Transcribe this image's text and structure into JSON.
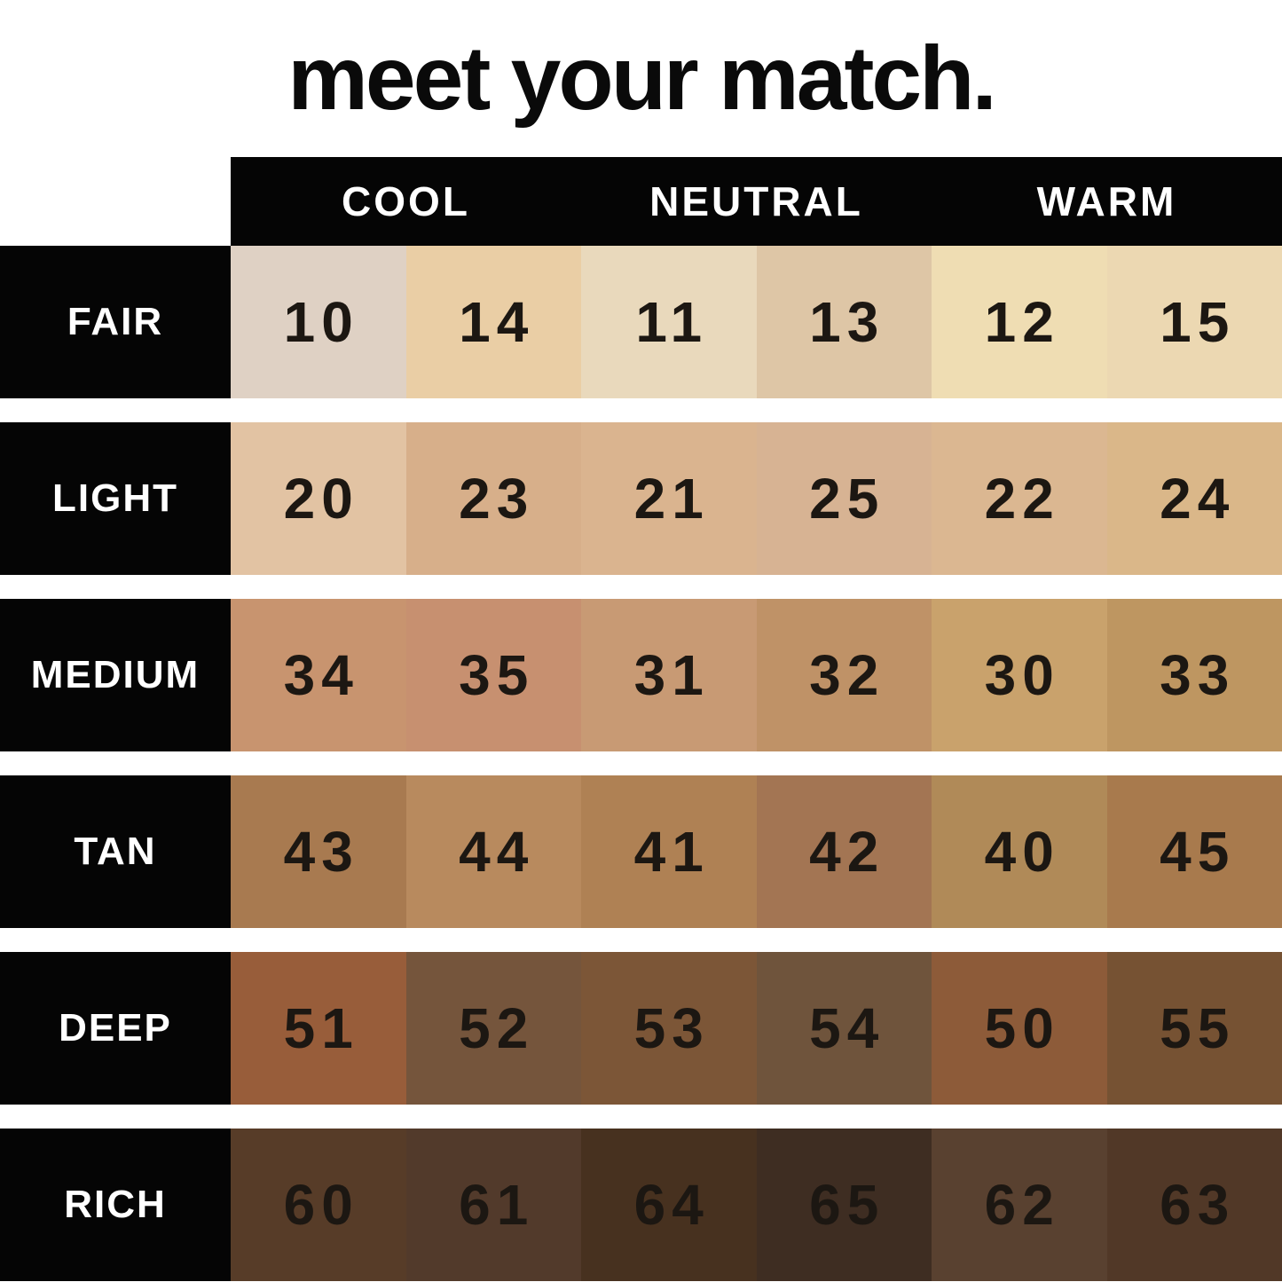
{
  "title": "meet your match.",
  "header": {
    "columns": [
      "COOL",
      "NEUTRAL",
      "WARM"
    ]
  },
  "colors": {
    "background": "#ffffff",
    "bar": "#050505",
    "header_text": "#ffffff",
    "label_text": "#ffffff",
    "number_text": "#1c1712"
  },
  "chart_data": {
    "type": "table",
    "title": "meet your match.",
    "column_groups": [
      "COOL",
      "NEUTRAL",
      "WARM"
    ],
    "columns_per_group": 2,
    "rows": [
      {
        "label": "FAIR",
        "shades": [
          {
            "number": "10",
            "color": "#DFD1C4"
          },
          {
            "number": "14",
            "color": "#EACEA5"
          },
          {
            "number": "11",
            "color": "#E9D9BC"
          },
          {
            "number": "13",
            "color": "#DEC6A6"
          },
          {
            "number": "12",
            "color": "#EFDDB3"
          },
          {
            "number": "15",
            "color": "#ECD8B2"
          }
        ]
      },
      {
        "label": "LIGHT",
        "shades": [
          {
            "number": "20",
            "color": "#E2C3A3"
          },
          {
            "number": "23",
            "color": "#D7AF8A"
          },
          {
            "number": "21",
            "color": "#DAB48F"
          },
          {
            "number": "25",
            "color": "#D7B393"
          },
          {
            "number": "22",
            "color": "#DBB791"
          },
          {
            "number": "24",
            "color": "#DAB789"
          }
        ]
      },
      {
        "label": "MEDIUM",
        "shades": [
          {
            "number": "34",
            "color": "#C8946F"
          },
          {
            "number": "35",
            "color": "#C79070"
          },
          {
            "number": "31",
            "color": "#C89A74"
          },
          {
            "number": "32",
            "color": "#BF9267"
          },
          {
            "number": "30",
            "color": "#C9A26C"
          },
          {
            "number": "33",
            "color": "#BE9661"
          }
        ]
      },
      {
        "label": "TAN",
        "shades": [
          {
            "number": "43",
            "color": "#A87A50"
          },
          {
            "number": "44",
            "color": "#B88A5E"
          },
          {
            "number": "41",
            "color": "#AF8154"
          },
          {
            "number": "42",
            "color": "#A37553"
          },
          {
            "number": "40",
            "color": "#B08A58"
          },
          {
            "number": "45",
            "color": "#A87A4D"
          }
        ]
      },
      {
        "label": "DEEP",
        "shades": [
          {
            "number": "51",
            "color": "#985D3A"
          },
          {
            "number": "52",
            "color": "#75553C"
          },
          {
            "number": "53",
            "color": "#7C5637"
          },
          {
            "number": "54",
            "color": "#6F543C"
          },
          {
            "number": "50",
            "color": "#8D5B39"
          },
          {
            "number": "55",
            "color": "#765233"
          }
        ]
      },
      {
        "label": "RICH",
        "shades": [
          {
            "number": "60",
            "color": "#573C28"
          },
          {
            "number": "61",
            "color": "#523A2B"
          },
          {
            "number": "64",
            "color": "#47311F"
          },
          {
            "number": "65",
            "color": "#3E2D22"
          },
          {
            "number": "62",
            "color": "#594130"
          },
          {
            "number": "63",
            "color": "#513827"
          }
        ]
      }
    ]
  }
}
